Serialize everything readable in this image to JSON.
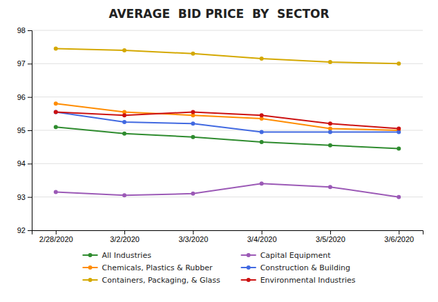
{
  "chart_data": {
    "type": "line",
    "title": "AVERAGE  BID PRICE  BY  SECTOR",
    "categories": [
      "2/28/2020",
      "3/2/2020",
      "3/3/2020",
      "3/4/2020",
      "3/5/2020",
      "3/6/2020"
    ],
    "series": [
      {
        "name": "All Industries",
        "color": "#2e8b2e",
        "values": [
          95.1,
          94.9,
          94.8,
          94.65,
          94.55,
          94.45
        ]
      },
      {
        "name": "Chemicals, Plastics & Rubber",
        "color": "#ff8c00",
        "values": [
          95.8,
          95.55,
          95.45,
          95.35,
          95.05,
          95.0
        ]
      },
      {
        "name": "Containers, Packaging, & Glass",
        "color": "#d4a800",
        "values": [
          97.45,
          97.4,
          97.3,
          97.15,
          97.05,
          97.0
        ]
      },
      {
        "name": "Capital Equipment",
        "color": "#9b59b6",
        "values": [
          93.15,
          93.05,
          93.1,
          93.4,
          93.3,
          93.0
        ]
      },
      {
        "name": "Construction & Building",
        "color": "#4169e1",
        "values": [
          95.55,
          95.25,
          95.2,
          94.95,
          94.95,
          94.95
        ]
      },
      {
        "name": "Environmental Industries",
        "color": "#cc1111",
        "values": [
          95.55,
          95.45,
          95.55,
          95.45,
          95.2,
          95.05
        ]
      }
    ],
    "ylim": [
      92,
      98
    ],
    "yticks": [
      92,
      93,
      94,
      95,
      96,
      97,
      98
    ],
    "grid": true,
    "legend": "bottom",
    "marker": "circle"
  }
}
